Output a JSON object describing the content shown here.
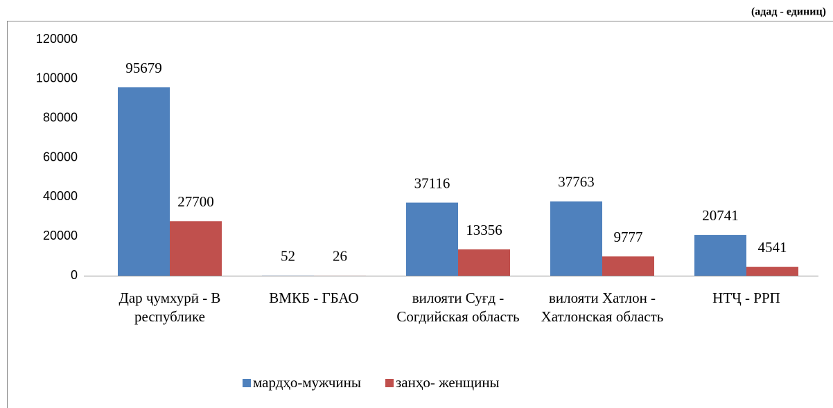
{
  "chart_data": {
    "type": "bar",
    "unit_note": "(адад - единиц)",
    "categories": [
      "Дар ҷумхурӣ - В республике",
      "ВМКБ - ГБАО",
      "вилояти Суғд - Согдийская область",
      "вилояти Хатлон - Хатлонская область",
      "НТҶ - РРП"
    ],
    "series": [
      {
        "name": "мардҳо-мужчины",
        "color": "#4f81bd",
        "values": [
          95679,
          52,
          37116,
          37763,
          20741
        ]
      },
      {
        "name": "занҳо- женщины",
        "color": "#c0504d",
        "values": [
          27700,
          26,
          13356,
          9777,
          4541
        ]
      }
    ],
    "ylim": [
      0,
      120000
    ],
    "yticks": [
      0,
      20000,
      40000,
      60000,
      80000,
      100000,
      120000
    ],
    "legend": "bottom"
  }
}
